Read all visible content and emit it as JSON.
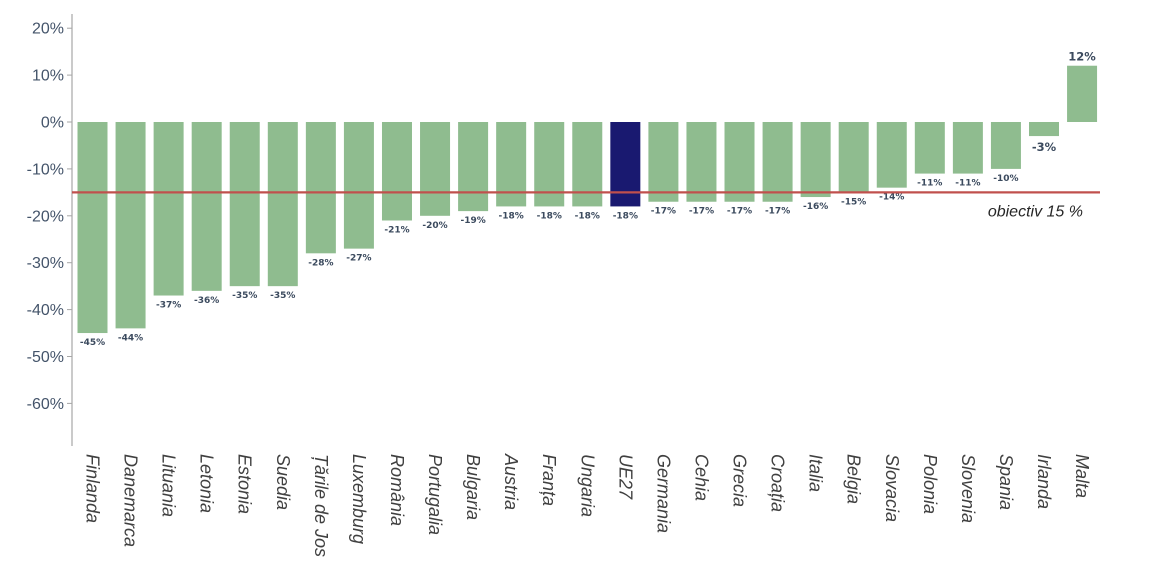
{
  "chart_data": {
    "type": "bar",
    "categories": [
      "Finlanda",
      "Danemarca",
      "Lituania",
      "Letonia",
      "Estonia",
      "Suedia",
      "Țările de Jos",
      "Luxemburg",
      "România",
      "Portugalia",
      "Bulgaria",
      "Austria",
      "Franța",
      "Ungaria",
      "UE27",
      "Germania",
      "Cehia",
      "Grecia",
      "Croația",
      "Italia",
      "Belgia",
      "Slovacia",
      "Polonia",
      "Slovenia",
      "Spania",
      "Irlanda",
      "Malta"
    ],
    "values": [
      -45,
      -44,
      -37,
      -36,
      -35,
      -35,
      -28,
      -27,
      -21,
      -20,
      -19,
      -18,
      -18,
      -18,
      -18,
      -17,
      -17,
      -17,
      -17,
      -16,
      -15,
      -14,
      -11,
      -11,
      -10,
      -3,
      12
    ],
    "value_labels": [
      "-45%",
      "-44%",
      "-37%",
      "-36%",
      "-35%",
      "-35%",
      "-28%",
      "-27%",
      "-21%",
      "-20%",
      "-19%",
      "-18%",
      "-18%",
      "-18%",
      "-18%",
      "-17%",
      "-17%",
      "-17%",
      "-17%",
      "-16%",
      "-15%",
      "-14%",
      "-11%",
      "-11%",
      "-10%",
      "-3%",
      "12%"
    ],
    "highlight_category": "UE27",
    "ylim": [
      -70,
      23
    ],
    "yticks": [
      20,
      10,
      0,
      -10,
      -20,
      -30,
      -40,
      -50,
      -60
    ],
    "ytick_labels": [
      "20%",
      "10%",
      "0%",
      "-10%",
      "-20%",
      "-30%",
      "-40%",
      "-50%",
      "-60%"
    ],
    "target_value": -15,
    "target_label": "obiectiv 15 %",
    "colors": {
      "bar": "#8fbc8f",
      "highlight": "#191970",
      "target_line": "#c0504d",
      "axis": "#a6a6a6"
    },
    "grid": false
  }
}
